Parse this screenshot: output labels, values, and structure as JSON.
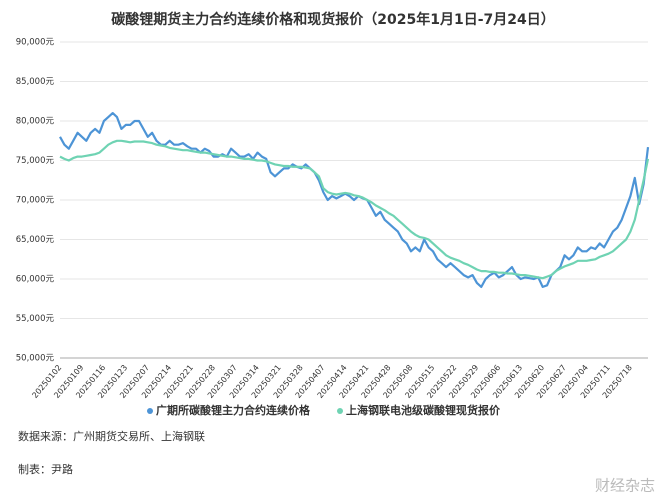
{
  "chart_data": {
    "type": "line",
    "title": "碳酸锂期货主力合约连续价格和现货报价（2025年1月1日-7月24日）",
    "source": "数据来源：广州期货交易所、上海钢联",
    "author": "制表：尹路",
    "watermark": "财经杂志",
    "categories": [
      "20250102",
      null,
      null,
      null,
      null,
      "20250109",
      null,
      null,
      null,
      null,
      "20250116",
      null,
      null,
      null,
      null,
      "20250123",
      null,
      null,
      null,
      null,
      "20250207",
      null,
      null,
      null,
      null,
      "20250214",
      null,
      null,
      null,
      null,
      "20250221",
      null,
      null,
      null,
      null,
      "20250228",
      null,
      null,
      null,
      null,
      "20250307",
      null,
      null,
      null,
      null,
      "20250314",
      null,
      null,
      null,
      null,
      "20250321",
      null,
      null,
      null,
      null,
      "20250328",
      null,
      null,
      null,
      null,
      "20250407",
      null,
      null,
      null,
      null,
      "20250414",
      null,
      null,
      null,
      null,
      "20250421",
      null,
      null,
      null,
      null,
      "20250428",
      null,
      null,
      null,
      null,
      "20250508",
      null,
      null,
      null,
      null,
      "20250515",
      null,
      null,
      null,
      null,
      "20250522",
      null,
      null,
      null,
      null,
      "20250529",
      null,
      null,
      null,
      null,
      "20250606",
      null,
      null,
      null,
      null,
      "20250613",
      null,
      null,
      null,
      null,
      "20250620",
      null,
      null,
      null,
      null,
      "20250627",
      null,
      null,
      null,
      null,
      "20250704",
      null,
      null,
      null,
      null,
      "20250711",
      null,
      null,
      null,
      null,
      "20250718",
      null,
      null,
      null,
      null
    ],
    "series": [
      {
        "name": "广期所碳酸锂主力合约连续价格",
        "color": "#4d94d6",
        "values": [
          78000,
          77000,
          76500,
          77500,
          78500,
          78000,
          77500,
          78500,
          79000,
          78500,
          80000,
          80500,
          81000,
          80500,
          79000,
          79500,
          79500,
          80000,
          80000,
          79000,
          78000,
          78500,
          77500,
          77000,
          77000,
          77500,
          77000,
          77000,
          77200,
          76800,
          76500,
          76500,
          76000,
          76500,
          76200,
          75500,
          75500,
          75800,
          75500,
          76500,
          76000,
          75500,
          75500,
          75800,
          75200,
          76000,
          75500,
          75200,
          73500,
          73000,
          73500,
          74000,
          74000,
          74500,
          74200,
          74000,
          74500,
          74000,
          73500,
          72500,
          71000,
          70000,
          70500,
          70200,
          70500,
          70800,
          70500,
          70000,
          70500,
          70200,
          70000,
          69000,
          68000,
          68500,
          67500,
          67000,
          66500,
          66000,
          65000,
          64500,
          63500,
          64000,
          63500,
          65000,
          64000,
          63500,
          62500,
          62000,
          61500,
          62000,
          61500,
          61000,
          60500,
          60200,
          60500,
          59500,
          59000,
          60000,
          60500,
          60800,
          60200,
          60500,
          61000,
          61500,
          60500,
          60000,
          60200,
          60100,
          60000,
          60200,
          59000,
          59200,
          60500,
          61000,
          61500,
          63000,
          62500,
          63000,
          64000,
          63500,
          63500,
          64000,
          63800,
          64500,
          64000,
          65000,
          66000,
          66500,
          67500,
          69000,
          70500,
          72800,
          69500,
          72000,
          76700
        ]
      },
      {
        "name": "上海钢联电池级碳酸锂现货报价",
        "color": "#6fd3b3",
        "values": [
          75500,
          75200,
          75000,
          75300,
          75500,
          75500,
          75600,
          75700,
          75800,
          76000,
          76500,
          77000,
          77300,
          77500,
          77500,
          77400,
          77300,
          77400,
          77400,
          77400,
          77300,
          77200,
          77000,
          76900,
          76800,
          76600,
          76500,
          76400,
          76300,
          76300,
          76200,
          76100,
          76000,
          76000,
          75900,
          75800,
          75700,
          75600,
          75500,
          75500,
          75400,
          75300,
          75200,
          75200,
          75100,
          75000,
          75000,
          74900,
          74700,
          74500,
          74400,
          74300,
          74300,
          74200,
          74200,
          74200,
          74100,
          74000,
          73500,
          73000,
          71500,
          71000,
          70800,
          70700,
          70800,
          70900,
          70800,
          70600,
          70500,
          70300,
          70000,
          69700,
          69300,
          69000,
          68700,
          68300,
          68000,
          67500,
          67000,
          66500,
          66000,
          65600,
          65300,
          65200,
          65000,
          64500,
          64000,
          63500,
          63000,
          62700,
          62500,
          62300,
          62000,
          61800,
          61500,
          61200,
          61000,
          61000,
          60900,
          60900,
          60800,
          60800,
          60700,
          60700,
          60600,
          60500,
          60500,
          60400,
          60300,
          60200,
          60100,
          60300,
          60500,
          61000,
          61300,
          61600,
          61800,
          62000,
          62300,
          62300,
          62300,
          62400,
          62500,
          62800,
          63000,
          63200,
          63500,
          64000,
          64500,
          65000,
          66000,
          67500,
          70000,
          72500,
          75200
        ]
      }
    ],
    "ylim": [
      50000,
      90000
    ],
    "yticks": [
      {
        "value": 50000,
        "label": "50,000元"
      },
      {
        "value": 55000,
        "label": "55,000元"
      },
      {
        "value": 60000,
        "label": "60,000元"
      },
      {
        "value": 65000,
        "label": "65,000元"
      },
      {
        "value": 70000,
        "label": "70,000元"
      },
      {
        "value": 75000,
        "label": "75,000元"
      },
      {
        "value": 80000,
        "label": "80,000元"
      },
      {
        "value": 85000,
        "label": "85,000元"
      },
      {
        "value": 90000,
        "label": "90,000元"
      }
    ],
    "grid": true
  }
}
